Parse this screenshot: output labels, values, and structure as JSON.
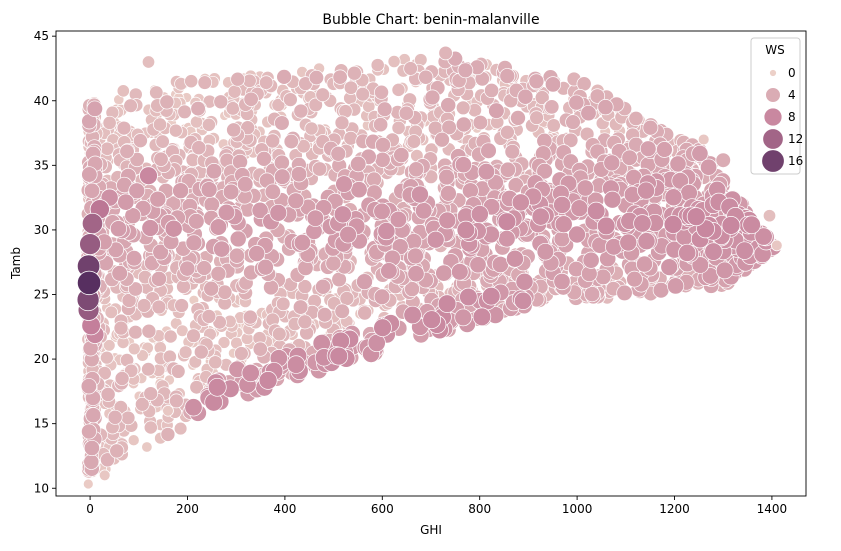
{
  "chart_data": {
    "type": "scatter",
    "title": "Bubble Chart: benin-malanville",
    "xlabel": "GHI",
    "ylabel": "Tamb",
    "xlim": [
      -70,
      1470
    ],
    "ylim": [
      9.4,
      45.4
    ],
    "x_ticks": [
      0,
      200,
      400,
      600,
      800,
      1000,
      1200,
      1400
    ],
    "y_ticks": [
      10,
      15,
      20,
      25,
      30,
      35,
      40,
      45
    ],
    "grid": false,
    "legend": {
      "title": "WS",
      "placement": "top-right",
      "entries": [
        {
          "label": "0",
          "value": 0
        },
        {
          "label": "4",
          "value": 4
        },
        {
          "label": "8",
          "value": 8
        },
        {
          "label": "12",
          "value": 12
        },
        {
          "label": "16",
          "value": 16
        }
      ]
    },
    "size_encoding": "WS",
    "hue_encoding": "WS",
    "ws_range": [
      0,
      19
    ],
    "colors": {
      "low": "#ecd0c8",
      "mid": "#c27b98",
      "high": "#4a2659",
      "edge": "#ffffff"
    },
    "highlight_points": [
      {
        "x": -2,
        "y": 25.9,
        "ws": 18
      },
      {
        "x": -3,
        "y": 27.2,
        "ws": 16
      },
      {
        "x": -4,
        "y": 24.6,
        "ws": 15
      },
      {
        "x": 0,
        "y": 28.9,
        "ws": 13
      },
      {
        "x": 5,
        "y": 30.5,
        "ws": 12
      },
      {
        "x": 20,
        "y": 31.6,
        "ws": 10
      },
      {
        "x": -3,
        "y": 23.8,
        "ws": 13
      },
      {
        "x": 2,
        "y": 22.6,
        "ws": 9
      },
      {
        "x": 10,
        "y": 21.9,
        "ws": 8
      },
      {
        "x": 40,
        "y": 32.5,
        "ws": 7
      },
      {
        "x": 120,
        "y": 34.2,
        "ws": 8
      },
      {
        "x": 1300,
        "y": 35.4,
        "ws": 4
      },
      {
        "x": 1395,
        "y": 31.1,
        "ws": 2
      },
      {
        "x": 1410,
        "y": 28.8,
        "ws": 1
      },
      {
        "x": 1260,
        "y": 37.0,
        "ws": 1
      },
      {
        "x": 730,
        "y": 43.7,
        "ws": 3
      },
      {
        "x": 120,
        "y": 43.0,
        "ws": 2
      },
      {
        "x": 30,
        "y": 11.0,
        "ws": 1
      },
      {
        "x": 160,
        "y": 16.0,
        "ws": 1
      }
    ]
  }
}
